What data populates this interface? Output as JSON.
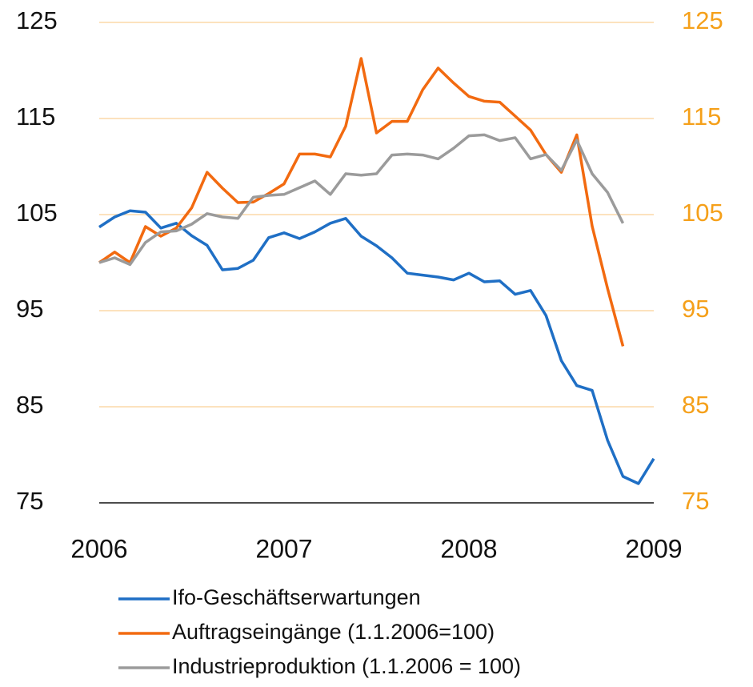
{
  "chart_data": {
    "type": "line",
    "x": [
      0,
      1,
      2,
      3,
      4,
      5,
      6,
      7,
      8,
      9,
      10,
      11,
      12,
      13,
      14,
      15,
      16,
      17,
      18,
      19,
      20,
      21,
      22,
      23,
      24,
      25,
      26,
      27,
      28,
      29,
      30,
      31,
      32,
      33,
      34,
      35,
      36
    ],
    "xlim": [
      0,
      36
    ],
    "xticks": [
      {
        "value": 0,
        "label": "2006"
      },
      {
        "value": 12,
        "label": "2007"
      },
      {
        "value": 24,
        "label": "2008"
      },
      {
        "value": 36,
        "label": "2009"
      }
    ],
    "ylim": [
      75,
      125
    ],
    "yticks": [
      75,
      85,
      95,
      105,
      115,
      125
    ],
    "y2lim": [
      75,
      125
    ],
    "y2ticks": [
      75,
      85,
      95,
      105,
      115,
      125
    ],
    "y2color": "#f5a01a",
    "grid": true,
    "grid_color": "#fbd9a8",
    "legend": "bottom",
    "series": [
      {
        "name": "Ifo-Geschäftserwartungen",
        "color": "#1f6fc5",
        "values": [
          103.7,
          104.75,
          105.4,
          105.25,
          103.6,
          104.1,
          102.8,
          101.8,
          99.25,
          99.4,
          100.25,
          102.6,
          103.1,
          102.5,
          103.2,
          104.1,
          104.6,
          102.75,
          101.75,
          100.5,
          98.9,
          98.7,
          98.5,
          98.2,
          98.9,
          98.0,
          98.1,
          96.7,
          97.1,
          94.5,
          89.8,
          87.2,
          86.7,
          81.5,
          77.75,
          77.0,
          79.6
        ]
      },
      {
        "name": "Auftragseingänge (1.1.2006=100)",
        "color": "#f26a10",
        "values": [
          100,
          101.1,
          100,
          103.75,
          102.75,
          103.6,
          105.7,
          109.4,
          107.75,
          106.25,
          106.3,
          107.2,
          108.2,
          111.3,
          111.3,
          111,
          114.2,
          121.25,
          113.5,
          114.7,
          114.7,
          118,
          120.25,
          118.7,
          117.3,
          116.8,
          116.7,
          115.25,
          113.8,
          111.25,
          109.4,
          113.3,
          103.8,
          97.3,
          91.3,
          null,
          null
        ]
      },
      {
        "name": "Industrieproduktion (1.1.2006 = 100)",
        "color": "#9b9b9b",
        "values": [
          100,
          100.5,
          99.8,
          102.1,
          103.2,
          103.3,
          104,
          105.1,
          104.75,
          104.6,
          106.8,
          107,
          107.1,
          107.8,
          108.5,
          107.1,
          109.25,
          109.1,
          109.25,
          111.2,
          111.3,
          111.2,
          110.8,
          111.9,
          113.2,
          113.3,
          112.7,
          113,
          110.8,
          111.25,
          109.6,
          112.75,
          109.25,
          107.3,
          104.1,
          null,
          null
        ]
      }
    ]
  }
}
